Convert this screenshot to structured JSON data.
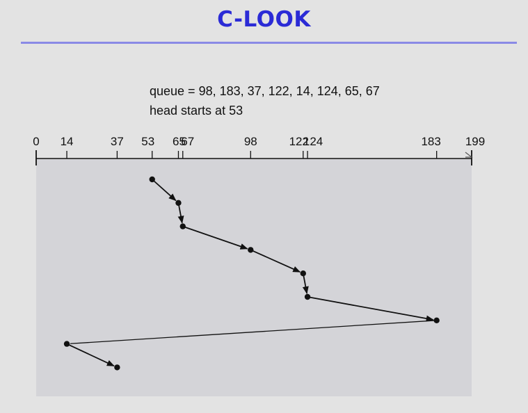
{
  "title": "C-LOOK",
  "queue_text": "queue = 98, 183, 37, 122, 14, 124, 65, 67",
  "head_text": "head starts at 53",
  "chart_data": {
    "type": "line",
    "axis_min": 0,
    "axis_max": 199,
    "tick_labels": [
      "0",
      "14",
      "37",
      "53",
      "65",
      "67",
      "98",
      "122",
      "124",
      "183",
      "199"
    ],
    "tick_values": [
      0,
      14,
      37,
      53,
      65,
      67,
      98,
      122,
      124,
      183,
      199
    ],
    "queue": [
      98,
      183,
      37,
      122,
      14,
      124,
      65,
      67
    ],
    "head_start": 53,
    "service_order": [
      53,
      65,
      67,
      98,
      122,
      124,
      183,
      14,
      37
    ]
  },
  "colors": {
    "title": "#2b2bd6",
    "rule": "#8a8ae6",
    "plot_bg": "#d4d4d8",
    "ink": "#111111"
  }
}
